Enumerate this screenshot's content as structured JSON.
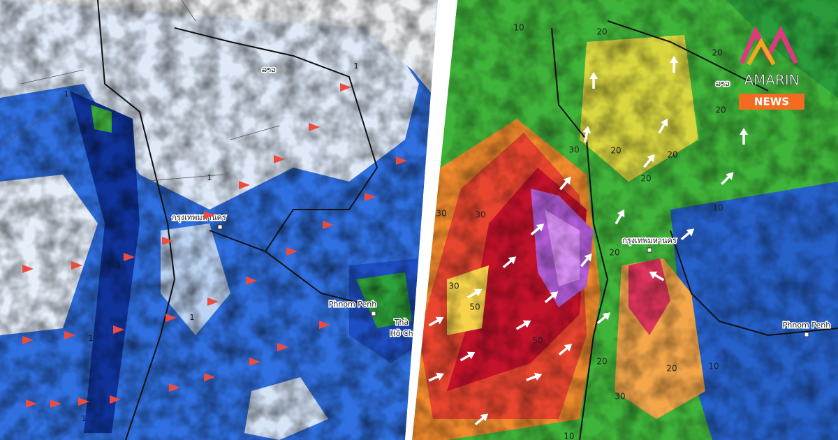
{
  "left_map": {
    "places": [
      "ລາວ",
      "กรุงเทพมหานคร",
      "Phnom Penh",
      "Thà",
      "Hồ Ch"
    ],
    "contours": [
      "1",
      "1",
      "1",
      "1",
      "1",
      "1",
      "1"
    ]
  },
  "right_map": {
    "places": [
      "ລາວ",
      "กรุงเทพมหานคร",
      "Phnom Penh"
    ],
    "contours": [
      "10",
      "20",
      "20",
      "30",
      "20",
      "20",
      "30",
      "30",
      "50",
      "50",
      "30",
      "20",
      "20",
      "10",
      "20",
      "10",
      "30",
      "10",
      "20",
      "20"
    ]
  },
  "logo": {
    "brand": "AMARIN",
    "tag": "NEWS"
  }
}
